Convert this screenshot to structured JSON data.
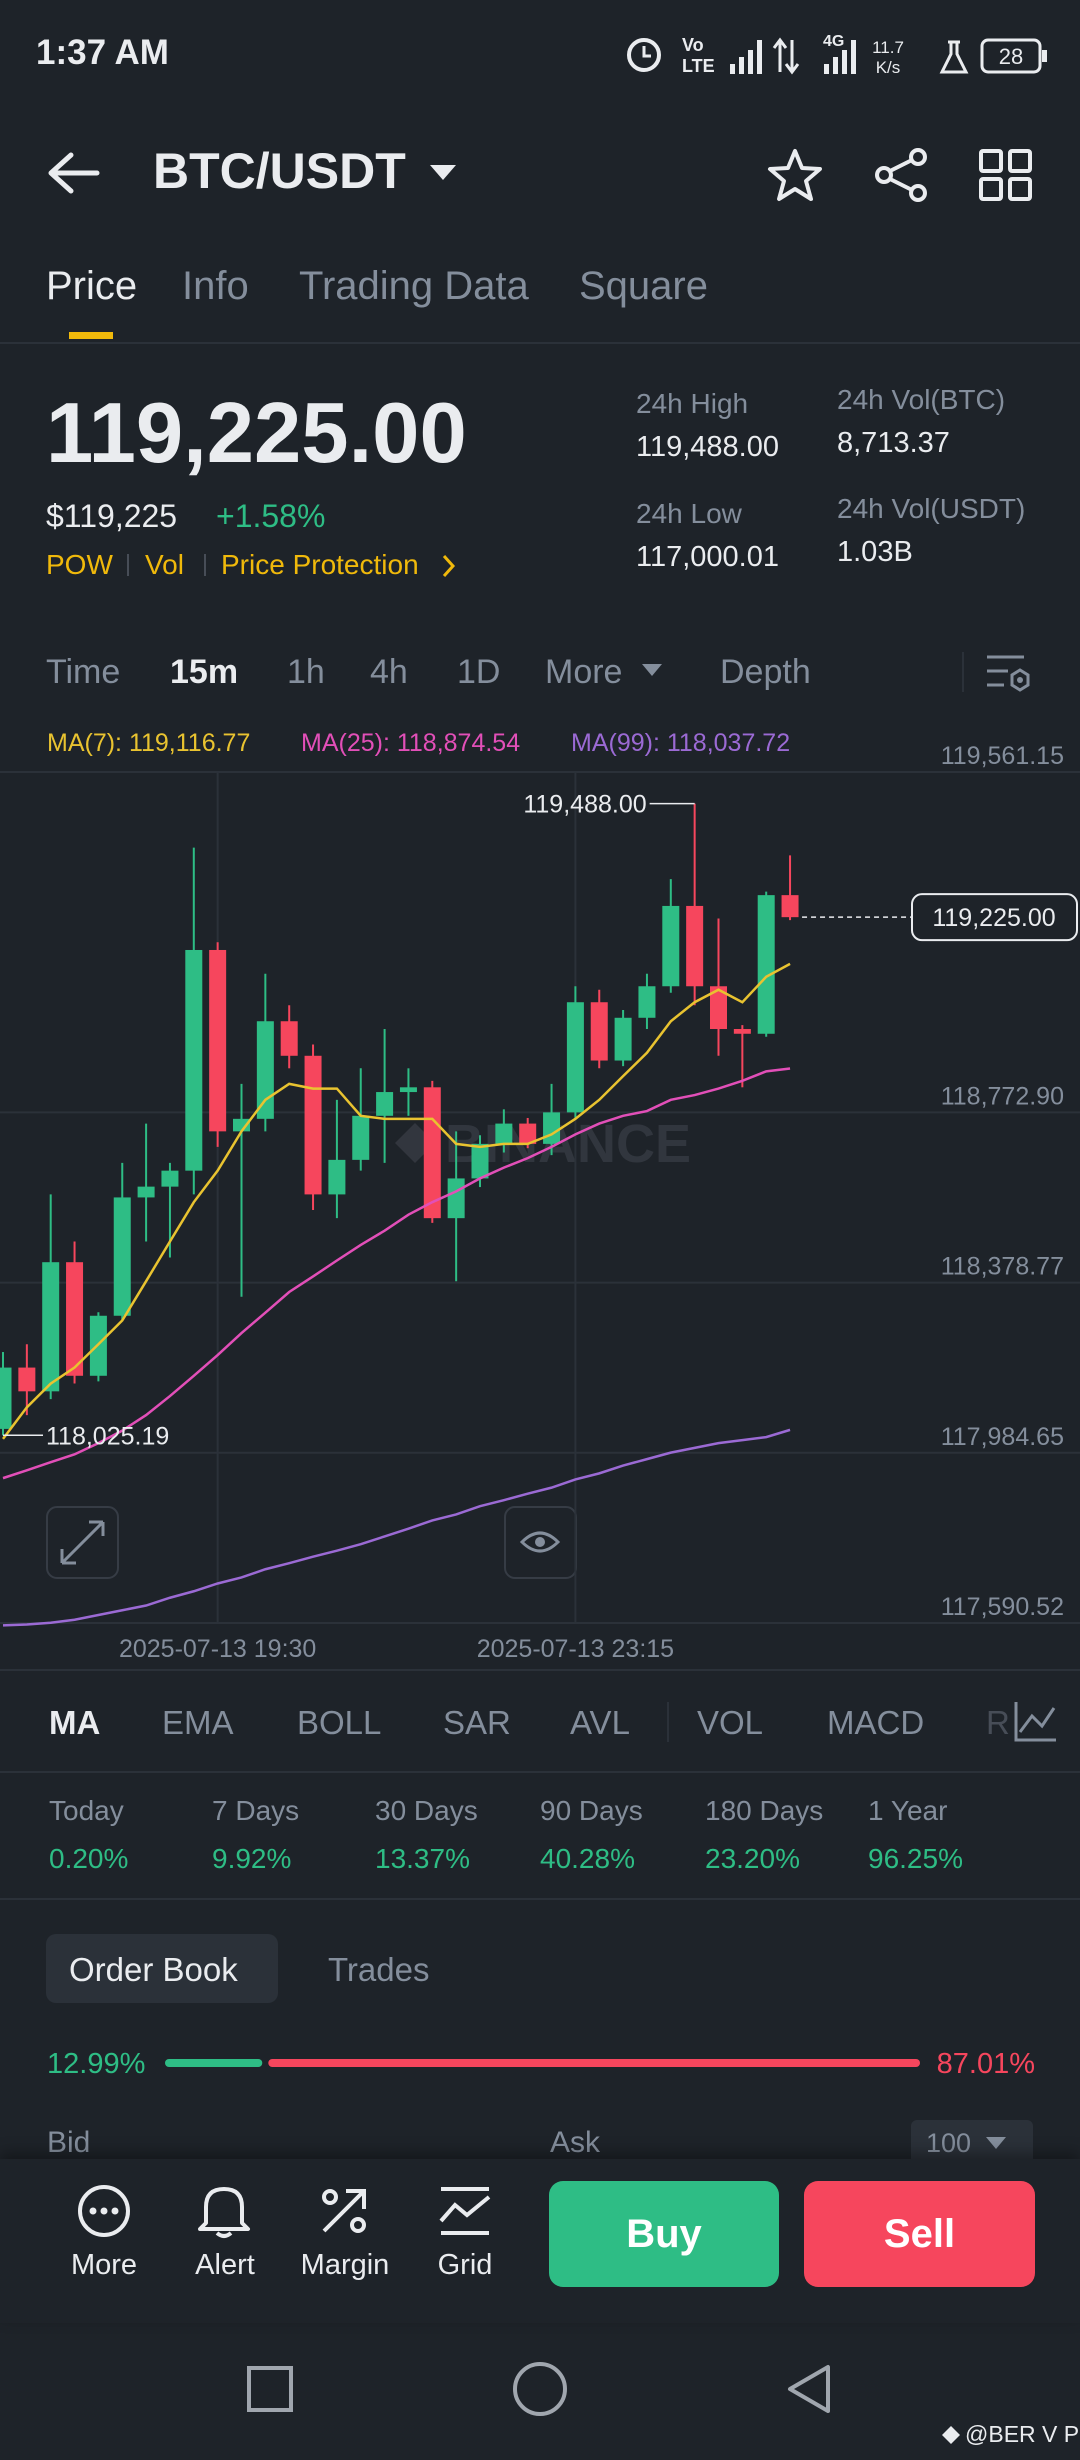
{
  "status_bar": {
    "time": "1:37 AM",
    "volte_top": "Vo",
    "volte_bottom": "LTE",
    "network": "4G",
    "speed_value": "11.7",
    "speed_unit": "K/s",
    "battery": "28"
  },
  "header": {
    "pair": "BTC/USDT"
  },
  "tabs": [
    "Price",
    "Info",
    "Trading Data",
    "Square"
  ],
  "ticker": {
    "price": "119,225.00",
    "price_usd": "$119,225",
    "change": "+1.58%",
    "tags": [
      "POW",
      "Vol",
      "Price Protection"
    ],
    "stats": [
      {
        "label": "24h High",
        "value": "119,488.00"
      },
      {
        "label": "24h Vol(BTC)",
        "value": "8,713.37"
      },
      {
        "label": "24h Low",
        "value": "117,000.01"
      },
      {
        "label": "24h Vol(USDT)",
        "value": "1.03B"
      }
    ]
  },
  "intervals": [
    "Time",
    "15m",
    "1h",
    "4h",
    "1D",
    "More",
    "Depth"
  ],
  "chart_data": {
    "type": "candlestick",
    "watermark": "BINANCE",
    "up_color": "#2ebd85",
    "down_color": "#f6465d",
    "categories": [
      null,
      null,
      null,
      null,
      null,
      null,
      null,
      null,
      null,
      "2025-07-13 19:30",
      null,
      null,
      null,
      null,
      null,
      null,
      null,
      null,
      null,
      null,
      null,
      null,
      null,
      null,
      "2025-07-13 23:15",
      null,
      null,
      null,
      null,
      null,
      null,
      null,
      null,
      null
    ],
    "candles": {
      "open": [
        118040,
        118182,
        118127,
        118426,
        118163,
        118302,
        118576,
        118601,
        118638,
        119149,
        118729,
        118758,
        118984,
        118904,
        118583,
        118663,
        118765,
        118820,
        118831,
        118528,
        118620,
        118700,
        118747,
        118700,
        118773,
        119028,
        118893,
        118992,
        119065,
        119251,
        119065,
        118966,
        118955,
        119276
      ],
      "high": [
        118218,
        118236,
        118583,
        118474,
        118310,
        118656,
        118747,
        118656,
        119386,
        119167,
        118839,
        119094,
        119021,
        118930,
        118802,
        118875,
        118966,
        118875,
        118846,
        118729,
        118720,
        118780,
        118760,
        118839,
        119065,
        119057,
        119010,
        119094,
        119313,
        119488,
        119222,
        118975,
        119284,
        119368
      ],
      "low": [
        118025.19,
        118072,
        118109,
        118145,
        118150,
        118291,
        118474,
        118437,
        118583,
        118693,
        118346,
        118729,
        118875,
        118547,
        118528,
        118638,
        118656,
        118765,
        118517,
        118382,
        118600,
        118680,
        118690,
        118674,
        118758,
        118875,
        118880,
        118966,
        119050,
        119021,
        118904,
        118831,
        118948,
        119218
      ],
      "close": [
        118182,
        118127,
        118426,
        118163,
        118302,
        118576,
        118601,
        118638,
        119149,
        118729,
        118758,
        118984,
        118904,
        118583,
        118663,
        118765,
        118820,
        118831,
        118528,
        118620,
        118700,
        118747,
        118700,
        118773,
        119028,
        118893,
        118992,
        119065,
        119251,
        119065,
        118966,
        118955,
        119276,
        119225
      ]
    },
    "ma": [
      {
        "name": "MA(7): 119,116.77",
        "color": "#e9c330",
        "values": [
          118017,
          118090,
          118145,
          118182,
          118236,
          118291,
          118382,
          118474,
          118565,
          118638,
          118729,
          118802,
          118839,
          118828,
          118828,
          118765,
          118758,
          118758,
          118758,
          118700,
          118693,
          118700,
          118700,
          118722,
          118758,
          118802,
          118857,
          118911,
          118984,
          119028,
          119057,
          119028,
          119087,
          119116.77
        ]
      },
      {
        "name": "MA(25): 118,874.54",
        "color": "#e24fb8",
        "values": [
          117926,
          117944,
          117963,
          117981,
          118007,
          118036,
          118072,
          118116,
          118163,
          118211,
          118262,
          118309,
          118357,
          118393,
          118430,
          118466,
          118499,
          118536,
          118565,
          118590,
          118620,
          118645,
          118667,
          118693,
          118722,
          118747,
          118765,
          118776,
          118802,
          118813,
          118828,
          118846,
          118868,
          118874.54
        ]
      },
      {
        "name": "MA(99): 118,037.72",
        "color": "#9b6ad4",
        "values": [
          117585,
          117587,
          117591,
          117598,
          117609,
          117620,
          117631,
          117649,
          117664,
          117682,
          117696,
          117715,
          117729,
          117744,
          117758,
          117773,
          117791,
          117809,
          117828,
          117842,
          117861,
          117875,
          117890,
          117904,
          117923,
          117937,
          117955,
          117970,
          117985,
          117996,
          118007,
          118014,
          118021,
          118037.72
        ]
      }
    ],
    "current_price": {
      "value": 119225,
      "label": "119,225.00"
    },
    "annotations": [
      {
        "value": 119488,
        "label": "119,488.00"
      },
      {
        "value": 118025.19,
        "label": "118,025.19"
      }
    ],
    "ylim": [
      117590.52,
      119561.15
    ],
    "yticks": [
      {
        "value": 117590.52,
        "label": "117,590.52"
      },
      {
        "value": 117984.65,
        "label": "117,984.65"
      },
      {
        "value": 118378.77,
        "label": "118,378.77"
      },
      {
        "value": 118772.9,
        "label": "118,772.90"
      },
      {
        "value": 119561.15,
        "label": "119,561.15"
      }
    ],
    "grid": true
  },
  "indicators": [
    "MA",
    "EMA",
    "BOLL",
    "SAR",
    "AVL",
    "VOL",
    "MACD",
    "R"
  ],
  "performance": [
    {
      "label": "Today",
      "value": "0.20%"
    },
    {
      "label": "7 Days",
      "value": "9.92%"
    },
    {
      "label": "30 Days",
      "value": "13.37%"
    },
    {
      "label": "90 Days",
      "value": "40.28%"
    },
    {
      "label": "180 Days",
      "value": "23.20%"
    },
    {
      "label": "1 Year",
      "value": "96.25%"
    }
  ],
  "order_book": {
    "tabs": [
      "Order Book",
      "Trades"
    ],
    "ratio": {
      "values": [
        12.99,
        87.01
      ],
      "value_labels": [
        "12.99%",
        "87.01%"
      ],
      "colors": [
        "#2ebd85",
        "#f6465d"
      ]
    },
    "bid_label": "Bid",
    "ask_label": "Ask",
    "depth": "100"
  },
  "actions": [
    "More",
    "Alert",
    "Margin",
    "Grid"
  ],
  "buy": "Buy",
  "sell": "Sell",
  "credit": "@BER V P"
}
